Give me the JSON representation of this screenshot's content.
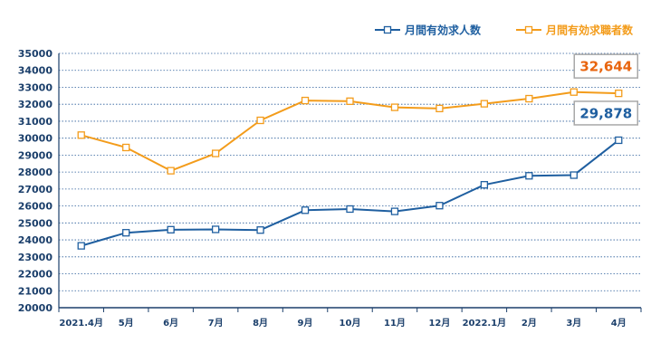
{
  "chart_data": {
    "type": "line",
    "categories": [
      "2021.4月",
      "5月",
      "6月",
      "7月",
      "8月",
      "9月",
      "10月",
      "11月",
      "12月",
      "2022.1月",
      "2月",
      "3月",
      "4月"
    ],
    "series": [
      {
        "name": "月間有効求人数",
        "color": "#1f5fa0",
        "values": [
          23650,
          24420,
          24600,
          24620,
          24580,
          25750,
          25820,
          25680,
          26020,
          27250,
          27780,
          27820,
          29878
        ]
      },
      {
        "name": "月間有効求職者数",
        "color": "#f39c1b",
        "values": [
          30180,
          29450,
          28080,
          29100,
          31050,
          32220,
          32180,
          31820,
          31750,
          32030,
          32330,
          32720,
          32644
        ]
      }
    ],
    "ylim": [
      20000,
      35000
    ],
    "yticks": [
      20000,
      21000,
      22000,
      23000,
      24000,
      25000,
      26000,
      27000,
      28000,
      29000,
      30000,
      31000,
      32000,
      33000,
      34000,
      35000
    ],
    "grid": "dashed horizontal",
    "legend": "top-right",
    "callouts": [
      {
        "text": "32,644",
        "series": 1,
        "color": "#e8650f"
      },
      {
        "text": "29,878",
        "series": 0,
        "color": "#1f5fa0"
      }
    ]
  }
}
